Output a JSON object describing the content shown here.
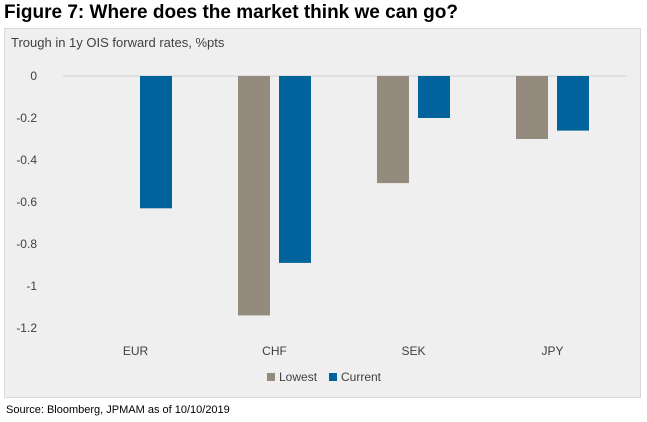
{
  "figure_title": "Figure 7: Where does the market think we can go?",
  "source": "Source: Bloomberg, JPMAM as of 10/10/2019",
  "chart_data": {
    "type": "bar",
    "title": "Trough in 1y OIS forward rates, %pts",
    "categories": [
      "EUR",
      "CHF",
      "SEK",
      "JPY"
    ],
    "series": [
      {
        "name": "Lowest",
        "values": [
          null,
          -1.14,
          -0.51,
          -0.3
        ],
        "color": "#948a7e"
      },
      {
        "name": "Current",
        "values": [
          -0.63,
          -0.89,
          -0.2,
          -0.26
        ],
        "color": "#00639b"
      }
    ],
    "yticks": [
      "0",
      "-0.2",
      "-0.4",
      "-0.6",
      "-0.8",
      "-1",
      "-1.2"
    ],
    "ylim": [
      -1.2,
      0
    ],
    "legend_position": "bottom",
    "grid": false
  }
}
